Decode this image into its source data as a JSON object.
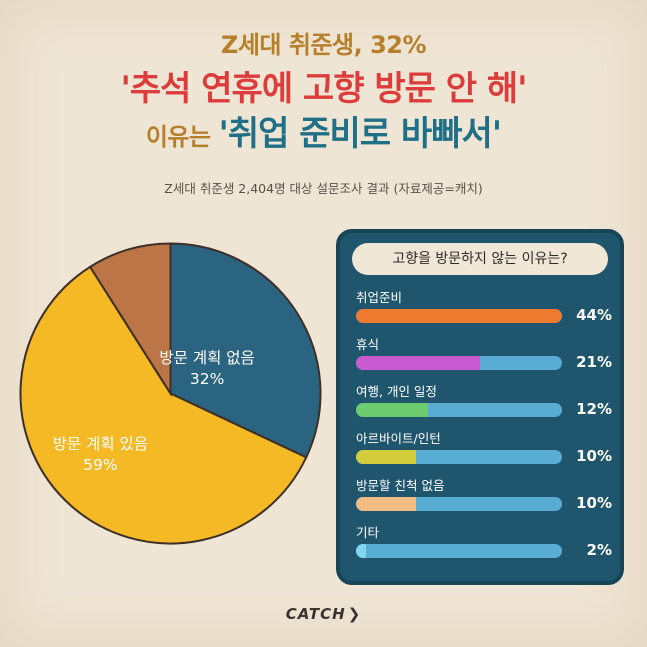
{
  "header": {
    "line1": "Z세대 취준생, 32%",
    "line2": "'추석 연휴에 고향 방문 안 해'",
    "line3_prefix": "이유는 ",
    "line3_highlight": "'취업 준비로 바빠서'"
  },
  "subtitle": "Z세대 취준생 2,404명 대상 설문조사 결과 (자료제공=캐치)",
  "pie": {
    "slices": [
      {
        "label": "방문 계획 없음",
        "value_text": "32%",
        "value": 32,
        "color": "#2a6480"
      },
      {
        "label": "방문 계획 있음",
        "value_text": "59%",
        "value": 59,
        "color": "#f5b926"
      },
      {
        "label": "",
        "value_text": "",
        "value": 9,
        "color": "#bb7546"
      }
    ]
  },
  "panel": {
    "title": "고향을 방문하지 않는 이유는?",
    "items": [
      {
        "label": "취업준비",
        "value_text": "44%",
        "value": 44,
        "color": "#ee7a2f",
        "fill_pct": 100
      },
      {
        "label": "휴식",
        "value_text": "21%",
        "value": 21,
        "color": "#c95ad1",
        "fill_pct": 60
      },
      {
        "label": "여행, 개인 일정",
        "value_text": "12%",
        "value": 12,
        "color": "#6bcb6e",
        "fill_pct": 35
      },
      {
        "label": "아르바이트/인턴",
        "value_text": "10%",
        "value": 10,
        "color": "#d3cd3c",
        "fill_pct": 29
      },
      {
        "label": "방문할 친척 없음",
        "value_text": "10%",
        "value": 10,
        "color": "#f2bb82",
        "fill_pct": 29
      },
      {
        "label": "기타",
        "value_text": "2%",
        "value": 2,
        "color": "#7fd6ee",
        "fill_pct": 5
      }
    ]
  },
  "logo": {
    "text": "CATCH"
  },
  "chart_data": [
    {
      "type": "pie",
      "categories": [
        "방문 계획 없음",
        "방문 계획 있음",
        ""
      ],
      "values": [
        32,
        59,
        9
      ],
      "title": "",
      "units": "%"
    },
    {
      "type": "bar",
      "title": "고향을 방문하지 않는 이유는?",
      "categories": [
        "취업준비",
        "휴식",
        "여행, 개인 일정",
        "아르바이트/인턴",
        "방문할 친척 없음",
        "기타"
      ],
      "values": [
        44,
        21,
        12,
        10,
        10,
        2
      ],
      "units": "%"
    }
  ]
}
